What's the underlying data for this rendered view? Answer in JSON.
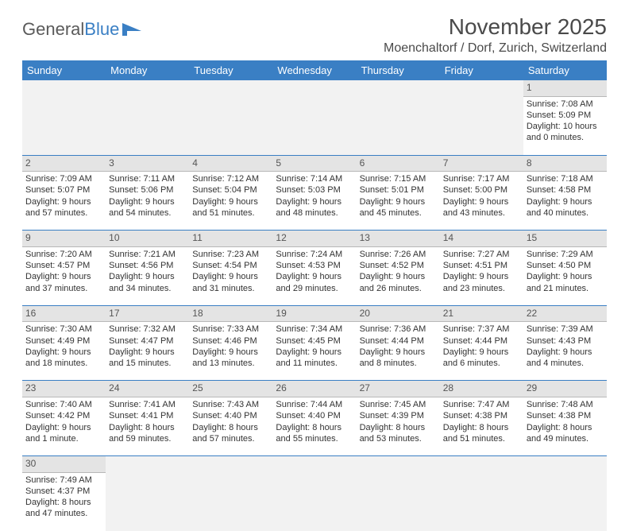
{
  "logo": {
    "text1": "General",
    "text2": "Blue"
  },
  "title": "November 2025",
  "location": "Moenchaltorf / Dorf, Zurich, Switzerland",
  "header_bg": "#3a7fc4",
  "daynum_bg": "#e4e4e4",
  "divider_color": "#3a7fc4",
  "day_headers": [
    "Sunday",
    "Monday",
    "Tuesday",
    "Wednesday",
    "Thursday",
    "Friday",
    "Saturday"
  ],
  "weeks": [
    [
      null,
      null,
      null,
      null,
      null,
      null,
      {
        "n": "1",
        "sunrise": "7:08 AM",
        "sunset": "5:09 PM",
        "daylight": "10 hours and 0 minutes."
      }
    ],
    [
      {
        "n": "2",
        "sunrise": "7:09 AM",
        "sunset": "5:07 PM",
        "daylight": "9 hours and 57 minutes."
      },
      {
        "n": "3",
        "sunrise": "7:11 AM",
        "sunset": "5:06 PM",
        "daylight": "9 hours and 54 minutes."
      },
      {
        "n": "4",
        "sunrise": "7:12 AM",
        "sunset": "5:04 PM",
        "daylight": "9 hours and 51 minutes."
      },
      {
        "n": "5",
        "sunrise": "7:14 AM",
        "sunset": "5:03 PM",
        "daylight": "9 hours and 48 minutes."
      },
      {
        "n": "6",
        "sunrise": "7:15 AM",
        "sunset": "5:01 PM",
        "daylight": "9 hours and 45 minutes."
      },
      {
        "n": "7",
        "sunrise": "7:17 AM",
        "sunset": "5:00 PM",
        "daylight": "9 hours and 43 minutes."
      },
      {
        "n": "8",
        "sunrise": "7:18 AM",
        "sunset": "4:58 PM",
        "daylight": "9 hours and 40 minutes."
      }
    ],
    [
      {
        "n": "9",
        "sunrise": "7:20 AM",
        "sunset": "4:57 PM",
        "daylight": "9 hours and 37 minutes."
      },
      {
        "n": "10",
        "sunrise": "7:21 AM",
        "sunset": "4:56 PM",
        "daylight": "9 hours and 34 minutes."
      },
      {
        "n": "11",
        "sunrise": "7:23 AM",
        "sunset": "4:54 PM",
        "daylight": "9 hours and 31 minutes."
      },
      {
        "n": "12",
        "sunrise": "7:24 AM",
        "sunset": "4:53 PM",
        "daylight": "9 hours and 29 minutes."
      },
      {
        "n": "13",
        "sunrise": "7:26 AM",
        "sunset": "4:52 PM",
        "daylight": "9 hours and 26 minutes."
      },
      {
        "n": "14",
        "sunrise": "7:27 AM",
        "sunset": "4:51 PM",
        "daylight": "9 hours and 23 minutes."
      },
      {
        "n": "15",
        "sunrise": "7:29 AM",
        "sunset": "4:50 PM",
        "daylight": "9 hours and 21 minutes."
      }
    ],
    [
      {
        "n": "16",
        "sunrise": "7:30 AM",
        "sunset": "4:49 PM",
        "daylight": "9 hours and 18 minutes."
      },
      {
        "n": "17",
        "sunrise": "7:32 AM",
        "sunset": "4:47 PM",
        "daylight": "9 hours and 15 minutes."
      },
      {
        "n": "18",
        "sunrise": "7:33 AM",
        "sunset": "4:46 PM",
        "daylight": "9 hours and 13 minutes."
      },
      {
        "n": "19",
        "sunrise": "7:34 AM",
        "sunset": "4:45 PM",
        "daylight": "9 hours and 11 minutes."
      },
      {
        "n": "20",
        "sunrise": "7:36 AM",
        "sunset": "4:44 PM",
        "daylight": "9 hours and 8 minutes."
      },
      {
        "n": "21",
        "sunrise": "7:37 AM",
        "sunset": "4:44 PM",
        "daylight": "9 hours and 6 minutes."
      },
      {
        "n": "22",
        "sunrise": "7:39 AM",
        "sunset": "4:43 PM",
        "daylight": "9 hours and 4 minutes."
      }
    ],
    [
      {
        "n": "23",
        "sunrise": "7:40 AM",
        "sunset": "4:42 PM",
        "daylight": "9 hours and 1 minute."
      },
      {
        "n": "24",
        "sunrise": "7:41 AM",
        "sunset": "4:41 PM",
        "daylight": "8 hours and 59 minutes."
      },
      {
        "n": "25",
        "sunrise": "7:43 AM",
        "sunset": "4:40 PM",
        "daylight": "8 hours and 57 minutes."
      },
      {
        "n": "26",
        "sunrise": "7:44 AM",
        "sunset": "4:40 PM",
        "daylight": "8 hours and 55 minutes."
      },
      {
        "n": "27",
        "sunrise": "7:45 AM",
        "sunset": "4:39 PM",
        "daylight": "8 hours and 53 minutes."
      },
      {
        "n": "28",
        "sunrise": "7:47 AM",
        "sunset": "4:38 PM",
        "daylight": "8 hours and 51 minutes."
      },
      {
        "n": "29",
        "sunrise": "7:48 AM",
        "sunset": "4:38 PM",
        "daylight": "8 hours and 49 minutes."
      }
    ],
    [
      {
        "n": "30",
        "sunrise": "7:49 AM",
        "sunset": "4:37 PM",
        "daylight": "8 hours and 47 minutes."
      },
      null,
      null,
      null,
      null,
      null,
      null
    ]
  ],
  "labels": {
    "sunrise": "Sunrise:",
    "sunset": "Sunset:",
    "daylight": "Daylight:"
  }
}
